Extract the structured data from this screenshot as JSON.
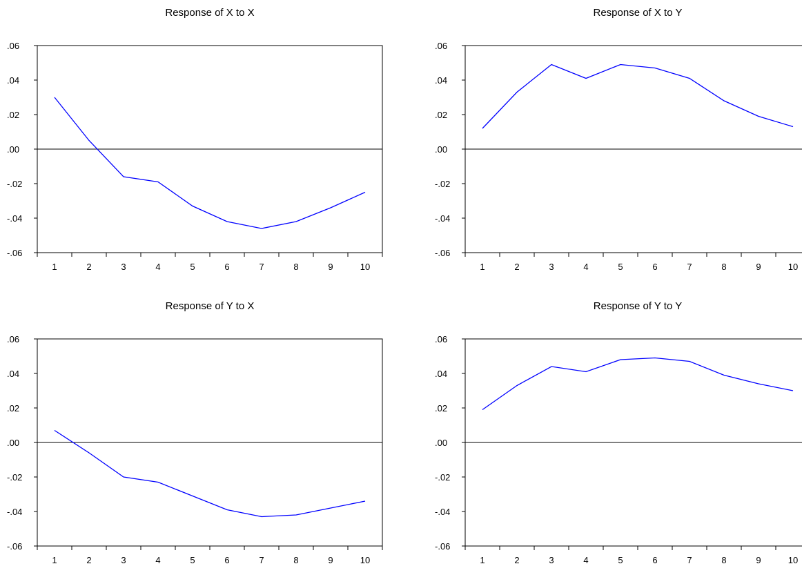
{
  "chart_data": [
    {
      "type": "line",
      "title": "Response of X to X",
      "x": [
        1,
        2,
        3,
        4,
        5,
        6,
        7,
        8,
        9,
        10
      ],
      "y_tick_labels": [
        ".06",
        ".04",
        ".02",
        ".00",
        "-.02",
        "-.04",
        "-.06"
      ],
      "x_tick_labels": [
        "1",
        "2",
        "3",
        "4",
        "5",
        "6",
        "7",
        "8",
        "9",
        "10"
      ],
      "ylim": [
        -0.06,
        0.06
      ],
      "zero_line": true,
      "grid": false,
      "series": [
        {
          "values": [
            0.03,
            0.005,
            -0.016,
            -0.019,
            -0.033,
            -0.042,
            -0.046,
            -0.042,
            -0.034,
            -0.025
          ],
          "color": "#0000ff"
        }
      ]
    },
    {
      "type": "line",
      "title": "Response of X to Y",
      "x": [
        1,
        2,
        3,
        4,
        5,
        6,
        7,
        8,
        9,
        10
      ],
      "y_tick_labels": [
        ".06",
        ".04",
        ".02",
        ".00",
        "-.02",
        "-.04",
        "-.06"
      ],
      "x_tick_labels": [
        "1",
        "2",
        "3",
        "4",
        "5",
        "6",
        "7",
        "8",
        "9",
        "10"
      ],
      "ylim": [
        -0.06,
        0.06
      ],
      "zero_line": true,
      "grid": false,
      "series": [
        {
          "values": [
            0.012,
            0.033,
            0.049,
            0.041,
            0.049,
            0.047,
            0.041,
            0.028,
            0.019,
            0.013
          ],
          "color": "#0000ff"
        }
      ]
    },
    {
      "type": "line",
      "title": "Response of Y to X",
      "x": [
        1,
        2,
        3,
        4,
        5,
        6,
        7,
        8,
        9,
        10
      ],
      "y_tick_labels": [
        ".06",
        ".04",
        ".02",
        ".00",
        "-.02",
        "-.04",
        "-.06"
      ],
      "x_tick_labels": [
        "1",
        "2",
        "3",
        "4",
        "5",
        "6",
        "7",
        "8",
        "9",
        "10"
      ],
      "ylim": [
        -0.06,
        0.06
      ],
      "zero_line": true,
      "grid": false,
      "series": [
        {
          "values": [
            0.007,
            -0.006,
            -0.02,
            -0.023,
            -0.031,
            -0.039,
            -0.043,
            -0.042,
            -0.038,
            -0.034
          ],
          "color": "#0000ff"
        }
      ]
    },
    {
      "type": "line",
      "title": "Response of Y to Y",
      "x": [
        1,
        2,
        3,
        4,
        5,
        6,
        7,
        8,
        9,
        10
      ],
      "y_tick_labels": [
        ".06",
        ".04",
        ".02",
        ".00",
        "-.02",
        "-.04",
        "-.06"
      ],
      "x_tick_labels": [
        "1",
        "2",
        "3",
        "4",
        "5",
        "6",
        "7",
        "8",
        "9",
        "10"
      ],
      "ylim": [
        -0.06,
        0.06
      ],
      "zero_line": true,
      "grid": false,
      "series": [
        {
          "values": [
            0.019,
            0.033,
            0.044,
            0.041,
            0.048,
            0.049,
            0.047,
            0.039,
            0.034,
            0.03
          ],
          "color": "#0000ff"
        }
      ]
    }
  ]
}
